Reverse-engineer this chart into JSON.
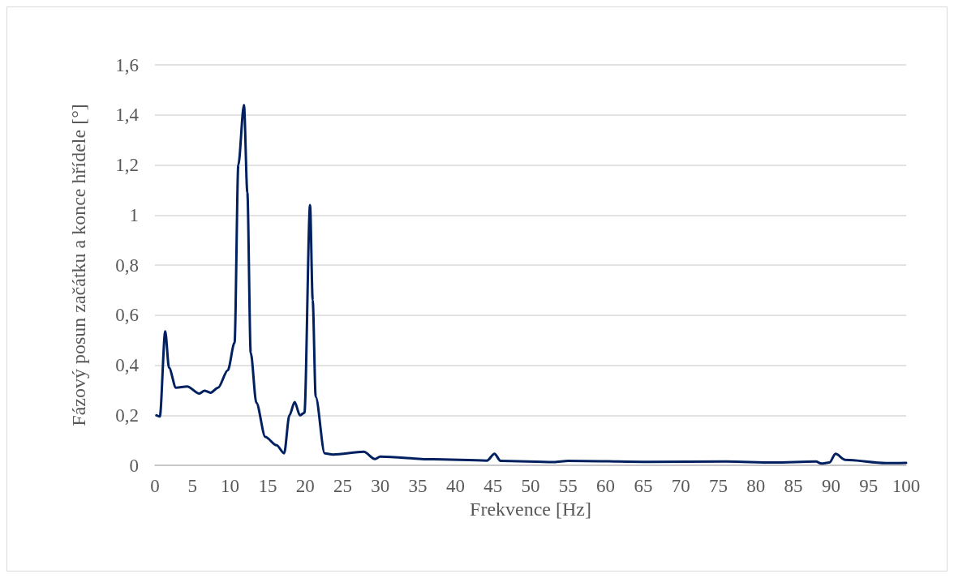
{
  "chart_data": {
    "type": "line",
    "xlabel": "Frekvence [Hz]",
    "ylabel": "Fázový posun začátku a konce hřídele [°]",
    "x": [
      0.2,
      0.65,
      1.37,
      1.87,
      2.8,
      4.3,
      5.9,
      6.6,
      7.4,
      8.4,
      9.7,
      10.6,
      11.1,
      11.85,
      12.3,
      12.75,
      13.5,
      14.7,
      16.2,
      17.2,
      17.9,
      18.6,
      19.3,
      19.9,
      20.65,
      21.0,
      21.4,
      22.6,
      23.7,
      27.8,
      29.3,
      30,
      37,
      44.2,
      45.2,
      46,
      53.1,
      55,
      65.7,
      76.1,
      82.3,
      88,
      88.7,
      89.8,
      90.6,
      91.9,
      97.3,
      100
    ],
    "series": [
      {
        "color": "#002060",
        "values": [
          0.2,
          0.195,
          0.535,
          0.39,
          0.31,
          0.315,
          0.287,
          0.298,
          0.29,
          0.31,
          0.38,
          0.49,
          1.2,
          1.44,
          1.09,
          0.45,
          0.25,
          0.113,
          0.08,
          0.048,
          0.2,
          0.253,
          0.2,
          0.21,
          1.04,
          0.66,
          0.274,
          0.048,
          0.043,
          0.054,
          0.025,
          0.035,
          0.024,
          0.019,
          0.046,
          0.018,
          0.013,
          0.018,
          0.014,
          0.015,
          0.011,
          0.015,
          0.007,
          0.011,
          0.046,
          0.022,
          0.009,
          0.01
        ]
      }
    ],
    "xlim": [
      0,
      100
    ],
    "xticks": [
      0,
      5,
      10,
      15,
      20,
      25,
      30,
      35,
      40,
      45,
      50,
      55,
      60,
      65,
      70,
      75,
      80,
      85,
      90,
      95,
      100
    ],
    "ylim": [
      0,
      1.6
    ],
    "yticks": [
      {
        "value": 0,
        "label": "0"
      },
      {
        "value": 0.2,
        "label": "0,2"
      },
      {
        "value": 0.4,
        "label": "0,4"
      },
      {
        "value": 0.6,
        "label": "0,6"
      },
      {
        "value": 0.8,
        "label": "0,8"
      },
      {
        "value": 1,
        "label": "1"
      },
      {
        "value": 1.2,
        "label": "1,2"
      },
      {
        "value": 1.4,
        "label": "1,4"
      },
      {
        "value": 1.6,
        "label": "1,6"
      }
    ],
    "grid": "y",
    "marker": "none",
    "line_style": "solid"
  }
}
